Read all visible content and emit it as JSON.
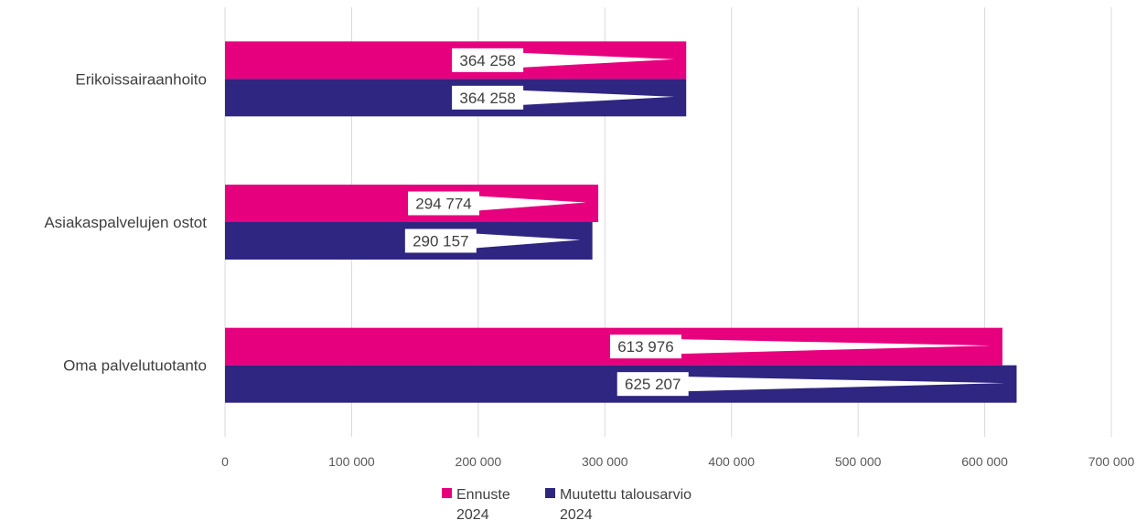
{
  "chart_data": {
    "type": "bar",
    "orientation": "horizontal",
    "title": "",
    "xlabel": "",
    "ylabel": "",
    "categories": [
      "Erikoissairaanhoito",
      "Asiakaspalvelujen ostot",
      "Oma palvelutuotanto"
    ],
    "series": [
      {
        "name": "Ennuste 2024",
        "name_lines": [
          "Ennuste",
          "2024"
        ],
        "color": "#E6007E",
        "values": [
          364258,
          294774,
          613976
        ],
        "value_labels": [
          "364 258",
          "294 774",
          "613 976"
        ]
      },
      {
        "name": "Muutettu talousarvio 2024",
        "name_lines": [
          "Muutettu talousarvio",
          "2024"
        ],
        "color": "#2E2680",
        "values": [
          364258,
          290157,
          625207
        ],
        "value_labels": [
          "364 258",
          "290 157",
          "625 207"
        ]
      }
    ],
    "xlim": [
      0,
      700000
    ],
    "ticks": [
      0,
      100000,
      200000,
      300000,
      400000,
      500000,
      600000,
      700000
    ],
    "tick_labels": [
      "0",
      "100 000",
      "200 000",
      "300 000",
      "400 000",
      "500 000",
      "600 000",
      "700 000"
    ],
    "grid": "vertical",
    "legend": "bottom"
  }
}
